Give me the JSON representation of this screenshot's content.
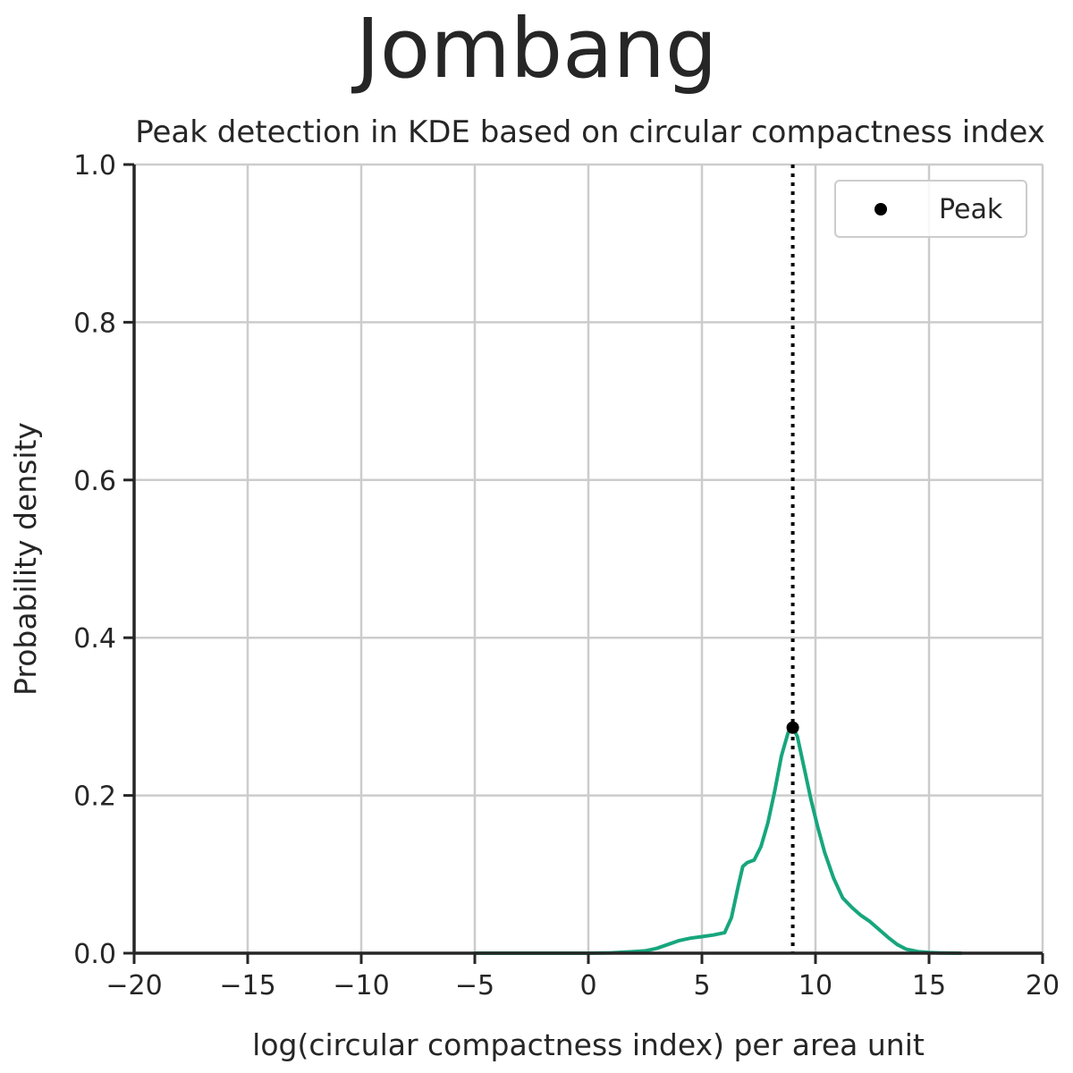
{
  "figure": {
    "suptitle": "Jombang"
  },
  "chart_data": {
    "type": "line",
    "title": "Peak detection in KDE based on circular compactness index",
    "xlabel": "log(circular compactness index) per area unit",
    "ylabel": "Probability density",
    "xlim": [
      -20,
      20
    ],
    "ylim": [
      0,
      1.0
    ],
    "xticks": [
      -20,
      -15,
      -10,
      -5,
      0,
      5,
      10,
      15,
      20
    ],
    "xtick_labels": [
      "−20",
      "−15",
      "−10",
      "−5",
      "0",
      "5",
      "10",
      "15",
      "20"
    ],
    "yticks": [
      0,
      0.2,
      0.4,
      0.6,
      0.8,
      1.0
    ],
    "ytick_labels": [
      "0.0",
      "0.2",
      "0.4",
      "0.6",
      "0.8",
      "1.0"
    ],
    "grid": true,
    "legend": {
      "position": "upper right",
      "entries": [
        "Peak"
      ]
    },
    "colors": {
      "kde": "#17a67d",
      "peak": "#000000",
      "vline": "#000000"
    },
    "series": [
      {
        "style": "kde-line",
        "x": [
          -5.0,
          -2.0,
          0.0,
          1.0,
          2.0,
          2.5,
          3.0,
          3.5,
          4.0,
          4.5,
          5.0,
          5.5,
          6.0,
          6.3,
          6.6,
          6.8,
          7.0,
          7.3,
          7.6,
          7.9,
          8.2,
          8.5,
          8.8,
          9.0,
          9.2,
          9.5,
          9.8,
          10.1,
          10.4,
          10.8,
          11.2,
          11.6,
          12.0,
          12.4,
          12.8,
          13.2,
          13.6,
          14.0,
          14.5,
          15.0,
          15.5,
          16.4
        ],
        "y": [
          0.0,
          0.0,
          0.0,
          0.0005,
          0.002,
          0.003,
          0.006,
          0.011,
          0.016,
          0.019,
          0.021,
          0.023,
          0.026,
          0.045,
          0.085,
          0.11,
          0.115,
          0.118,
          0.135,
          0.165,
          0.205,
          0.25,
          0.28,
          0.286,
          0.275,
          0.235,
          0.195,
          0.16,
          0.128,
          0.095,
          0.07,
          0.058,
          0.048,
          0.04,
          0.03,
          0.02,
          0.011,
          0.005,
          0.002,
          0.0008,
          0.0003,
          0.0
        ]
      }
    ],
    "peak": {
      "label": "Peak",
      "x": 9.0,
      "y": 0.286
    },
    "vline_x": 9.0
  }
}
